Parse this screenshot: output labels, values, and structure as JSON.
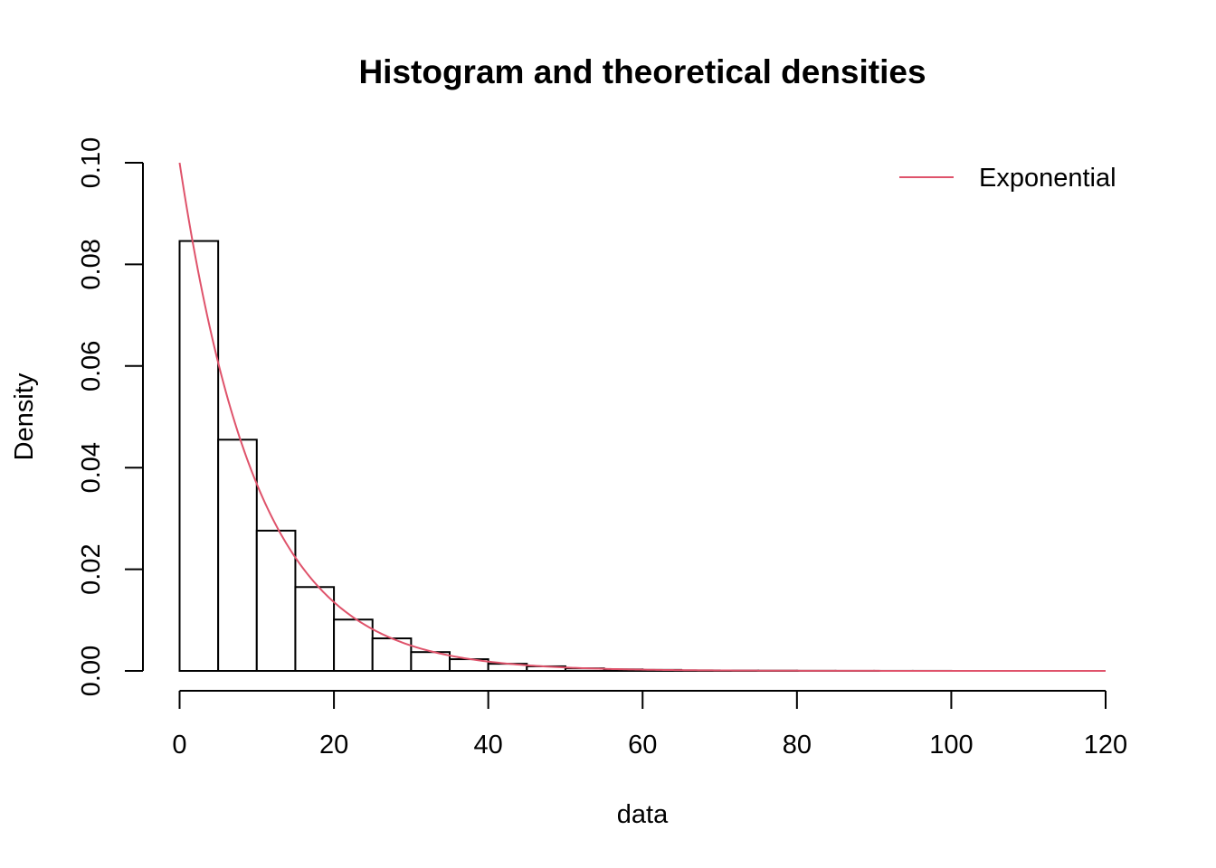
{
  "chart_data": {
    "type": "bar",
    "title": "Histogram and theoretical densities",
    "xlabel": "data",
    "ylabel": "Density",
    "xlim": [
      0,
      120
    ],
    "ylim": [
      0,
      0.1
    ],
    "x_ticks": [
      0,
      20,
      40,
      60,
      80,
      100,
      120
    ],
    "x_tick_labels": [
      "0",
      "20",
      "40",
      "60",
      "80",
      "100",
      "120"
    ],
    "y_ticks": [
      0,
      0.02,
      0.04,
      0.06,
      0.08,
      0.1
    ],
    "y_tick_labels": [
      "0.00",
      "0.02",
      "0.04",
      "0.06",
      "0.08",
      "0.10"
    ],
    "grid": false,
    "bin_width": 5,
    "histogram": {
      "bin_starts": [
        0,
        5,
        10,
        15,
        20,
        25,
        30,
        35,
        40,
        45,
        50,
        55,
        60,
        65,
        70,
        75,
        80,
        85,
        90,
        95,
        100,
        105,
        110,
        115
      ],
      "density": [
        0.0846,
        0.0455,
        0.0276,
        0.0165,
        0.0101,
        0.0064,
        0.0037,
        0.0023,
        0.0014,
        0.0009,
        0.0005,
        0.0003,
        0.0002,
        0.0001,
        6e-05,
        4e-05,
        2e-05,
        1e-05,
        1e-05,
        1e-05,
        0.0,
        0.0,
        0.0,
        0.0
      ],
      "fill_color": "#ffffff",
      "edge_color": "#000000"
    },
    "series": [
      {
        "name": "Exponential",
        "type": "line",
        "distribution": "exponential",
        "rate": 0.1,
        "color": "#DF536B"
      }
    ],
    "legend_position": "top-right"
  }
}
